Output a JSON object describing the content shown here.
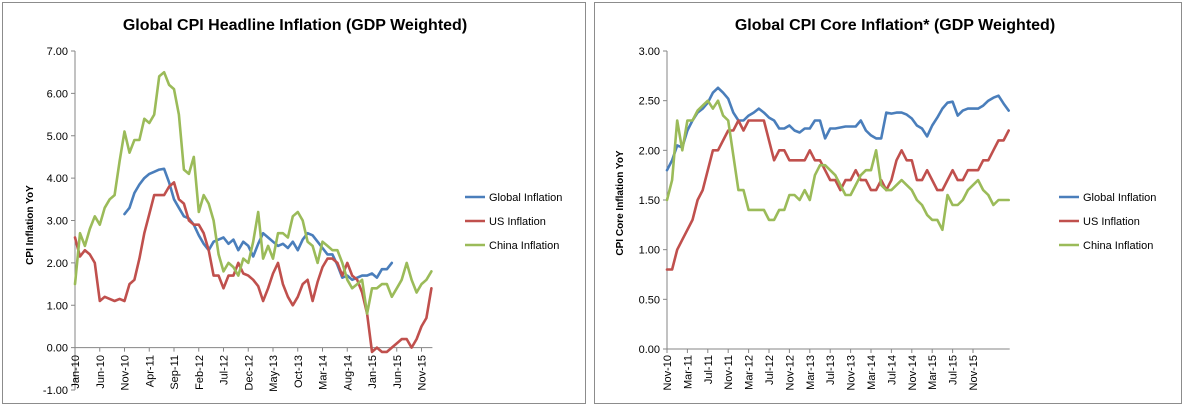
{
  "chart_data": [
    {
      "type": "line",
      "title": "Global CPI Headline Inflation (GDP Weighted)",
      "ylabel": "CPI Inflation YoY",
      "xlabel": "",
      "ylim": [
        -1.0,
        7.0
      ],
      "yticks": [
        "-1.00",
        "0.00",
        "1.00",
        "2.00",
        "3.00",
        "4.00",
        "5.00",
        "6.00",
        "7.00"
      ],
      "x_tick_labels": [
        "Jan-10",
        "Jun-10",
        "Nov-10",
        "Apr-11",
        "Sep-11",
        "Feb-12",
        "Jul-12",
        "Dec-12",
        "May-13",
        "Oct-13",
        "Mar-14",
        "Aug-14",
        "Jan-15",
        "Jun-15",
        "Nov-15"
      ],
      "x_start": "Jan-10",
      "legend_position": "right",
      "grid": false,
      "series": [
        {
          "name": "Global Inflation",
          "color": "#4a7ebb",
          "start": "Nov-10",
          "values": [
            3.15,
            3.3,
            3.65,
            3.85,
            4.0,
            4.1,
            4.15,
            4.2,
            4.22,
            3.9,
            3.5,
            3.3,
            3.1,
            3.05,
            2.9,
            2.65,
            2.45,
            2.3,
            2.5,
            2.55,
            2.6,
            2.45,
            2.55,
            2.3,
            2.5,
            2.4,
            2.15,
            2.45,
            2.7,
            2.6,
            2.5,
            2.4,
            2.45,
            2.35,
            2.5,
            2.3,
            2.55,
            2.7,
            2.65,
            2.5,
            2.35,
            2.2,
            2.2,
            1.95,
            1.65,
            1.7,
            1.6,
            1.65,
            1.7,
            1.7,
            1.75,
            1.65,
            1.85,
            1.85,
            2.0
          ]
        },
        {
          "name": "US Inflation",
          "color": "#c0504d",
          "start": "Jan-10",
          "values": [
            2.6,
            2.15,
            2.3,
            2.2,
            2.0,
            1.1,
            1.2,
            1.15,
            1.1,
            1.15,
            1.1,
            1.5,
            1.6,
            2.1,
            2.7,
            3.15,
            3.6,
            3.6,
            3.6,
            3.8,
            3.9,
            3.5,
            3.4,
            3.0,
            2.9,
            2.9,
            2.7,
            2.3,
            1.7,
            1.7,
            1.4,
            1.7,
            1.7,
            2.0,
            1.75,
            1.7,
            1.6,
            1.45,
            1.1,
            1.4,
            1.75,
            2.0,
            1.5,
            1.2,
            1.0,
            1.2,
            1.5,
            1.6,
            1.1,
            1.55,
            1.9,
            2.1,
            2.1,
            2.0,
            1.7,
            2.0,
            1.7,
            1.6,
            1.3,
            0.8,
            -0.1,
            0.0,
            -0.1,
            -0.1,
            0.0,
            0.1,
            0.2,
            0.2,
            0.0,
            0.2,
            0.5,
            0.7,
            1.4
          ]
        },
        {
          "name": "China Inflation",
          "color": "#9bbb59",
          "start": "Jan-10",
          "values": [
            1.5,
            2.7,
            2.4,
            2.8,
            3.1,
            2.9,
            3.3,
            3.5,
            3.6,
            4.4,
            5.1,
            4.6,
            4.9,
            4.9,
            5.4,
            5.3,
            5.5,
            6.4,
            6.5,
            6.2,
            6.1,
            5.5,
            4.2,
            4.1,
            4.5,
            3.2,
            3.6,
            3.4,
            3.0,
            2.2,
            1.8,
            2.0,
            1.9,
            1.7,
            2.1,
            2.0,
            2.5,
            3.2,
            2.1,
            2.4,
            2.1,
            2.7,
            2.7,
            2.6,
            3.1,
            3.2,
            3.0,
            2.5,
            2.4,
            2.0,
            2.5,
            2.4,
            2.3,
            2.3,
            2.0,
            1.6,
            1.4,
            1.5,
            1.6,
            0.8,
            1.4,
            1.4,
            1.5,
            1.5,
            1.2,
            1.4,
            1.6,
            2.0,
            1.6,
            1.3,
            1.5,
            1.6,
            1.8
          ]
        }
      ]
    },
    {
      "type": "line",
      "title": "Global CPI Core Inflation* (GDP Weighted)",
      "ylabel": "CPI Core Inflation YoY",
      "xlabel": "",
      "ylim": [
        0.0,
        3.0
      ],
      "yticks": [
        "0.00",
        "0.50",
        "1.00",
        "1.50",
        "2.00",
        "2.50",
        "3.00"
      ],
      "x_tick_labels": [
        "Nov-10",
        "Mar-11",
        "Jul-11",
        "Nov-11",
        "Mar-12",
        "Jul-12",
        "Nov-12",
        "Mar-13",
        "Jul-13",
        "Nov-13",
        "Mar-14",
        "Jul-14",
        "Nov-14",
        "Mar-15",
        "Jul-15",
        "Nov-15"
      ],
      "x_start": "Nov-10",
      "legend_position": "right",
      "grid": false,
      "series": [
        {
          "name": "Global Inflation",
          "color": "#4a7ebb",
          "start": "Nov-10",
          "values": [
            1.8,
            1.9,
            2.05,
            2.03,
            2.2,
            2.3,
            2.38,
            2.42,
            2.48,
            2.58,
            2.63,
            2.58,
            2.52,
            2.38,
            2.3,
            2.3,
            2.35,
            2.38,
            2.42,
            2.38,
            2.33,
            2.3,
            2.22,
            2.22,
            2.25,
            2.2,
            2.18,
            2.22,
            2.22,
            2.3,
            2.3,
            2.12,
            2.22,
            2.22,
            2.23,
            2.24,
            2.24,
            2.24,
            2.3,
            2.2,
            2.15,
            2.12,
            2.12,
            2.38,
            2.37,
            2.38,
            2.38,
            2.36,
            2.32,
            2.25,
            2.22,
            2.14,
            2.25,
            2.33,
            2.42,
            2.48,
            2.49,
            2.35,
            2.4,
            2.42,
            2.42,
            2.42,
            2.45,
            2.5,
            2.53,
            2.55,
            2.47,
            2.4
          ]
        },
        {
          "name": "US Inflation",
          "color": "#c0504d",
          "start": "Nov-10",
          "values": [
            0.8,
            0.8,
            1.0,
            1.1,
            1.2,
            1.3,
            1.5,
            1.6,
            1.8,
            2.0,
            2.0,
            2.1,
            2.2,
            2.2,
            2.3,
            2.2,
            2.3,
            2.3,
            2.3,
            2.3,
            2.1,
            1.9,
            2.0,
            2.0,
            1.9,
            1.9,
            1.9,
            1.9,
            2.0,
            1.9,
            1.9,
            1.8,
            1.7,
            1.7,
            1.6,
            1.7,
            1.7,
            1.8,
            1.7,
            1.7,
            1.6,
            1.6,
            1.7,
            1.6,
            1.7,
            1.9,
            2.0,
            1.9,
            1.9,
            1.7,
            1.7,
            1.8,
            1.7,
            1.6,
            1.6,
            1.7,
            1.8,
            1.7,
            1.7,
            1.8,
            1.8,
            1.8,
            1.9,
            1.9,
            2.0,
            2.1,
            2.1,
            2.2
          ]
        },
        {
          "name": "China Inflation",
          "color": "#9bbb59",
          "start": "Nov-10",
          "values": [
            1.5,
            1.7,
            2.3,
            2.0,
            2.3,
            2.3,
            2.4,
            2.45,
            2.5,
            2.42,
            2.5,
            2.35,
            2.3,
            1.95,
            1.6,
            1.6,
            1.4,
            1.4,
            1.4,
            1.4,
            1.3,
            1.3,
            1.4,
            1.4,
            1.55,
            1.55,
            1.5,
            1.6,
            1.5,
            1.75,
            1.85,
            1.85,
            1.8,
            1.75,
            1.65,
            1.55,
            1.55,
            1.65,
            1.75,
            1.8,
            1.8,
            2.0,
            1.65,
            1.6,
            1.6,
            1.65,
            1.7,
            1.65,
            1.6,
            1.5,
            1.45,
            1.35,
            1.3,
            1.3,
            1.2,
            1.55,
            1.45,
            1.45,
            1.5,
            1.6,
            1.65,
            1.7,
            1.6,
            1.55,
            1.45,
            1.5,
            1.5,
            1.5
          ]
        }
      ]
    }
  ]
}
